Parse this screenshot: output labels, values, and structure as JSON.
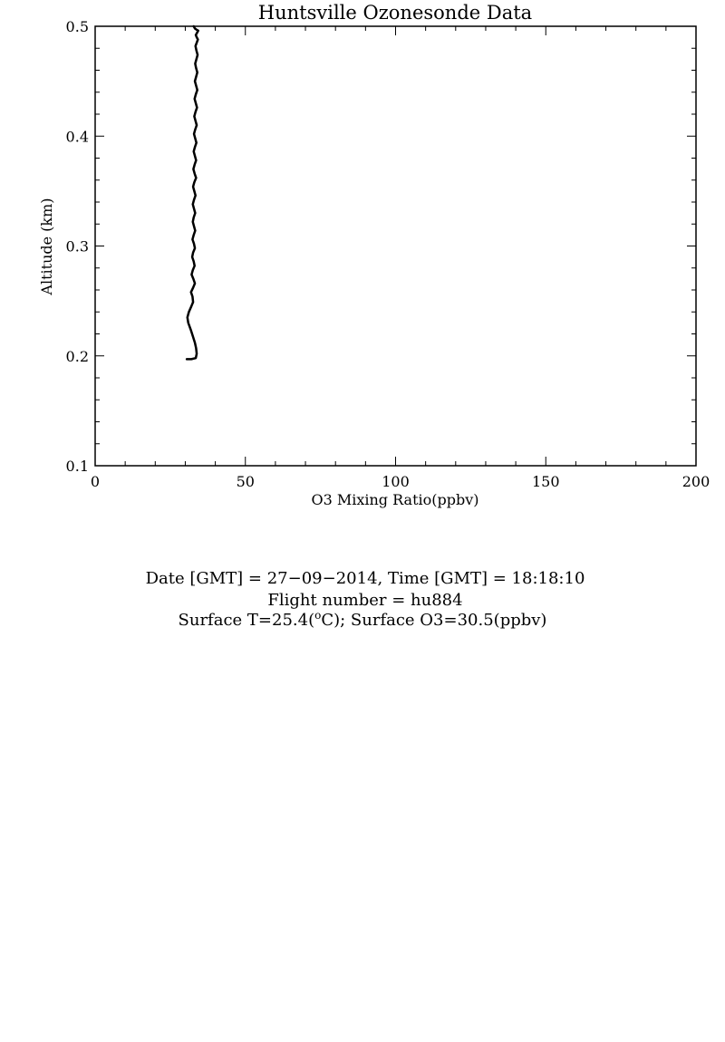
{
  "chart_data": {
    "type": "line",
    "title": "Huntsville Ozonesonde Data",
    "xlabel": "O3 Mixing Ratio(ppbv)",
    "ylabel": "Altitude (km)",
    "xlim": [
      0,
      200
    ],
    "ylim": [
      0.1,
      0.5
    ],
    "x_ticks": [
      0,
      50,
      100,
      150,
      200
    ],
    "x_tick_labels": [
      "0",
      "50",
      "100",
      "150",
      "200"
    ],
    "y_ticks": [
      0.1,
      0.2,
      0.3,
      0.4,
      0.5
    ],
    "y_tick_labels": [
      "0.1",
      "0.2",
      "0.3",
      "0.4",
      "0.5"
    ],
    "grid": false,
    "legend": "none",
    "line_color": "#000000",
    "series": [
      {
        "x": [
          30.5,
          32.0,
          33.5,
          33.8,
          33.6,
          33.2,
          32.5,
          31.8,
          31.0,
          30.7,
          31.2,
          32.0,
          32.6,
          32.4,
          31.9,
          32.6,
          33.2,
          32.7,
          32.1,
          32.5,
          33.1,
          32.8,
          32.3,
          32.6,
          33.2,
          32.9,
          32.4,
          32.8,
          33.3,
          32.9,
          32.5,
          32.8,
          33.3,
          32.9,
          32.5,
          32.9,
          33.4,
          33.0,
          32.6,
          33.0,
          33.6,
          33.1,
          32.7,
          33.1,
          33.6,
          33.2,
          32.8,
          33.2,
          33.7,
          33.3,
          32.9,
          33.3,
          33.8,
          33.4,
          33.0,
          33.4,
          33.9,
          33.5,
          33.1,
          33.5,
          34.0,
          33.6,
          33.2,
          33.6,
          34.0,
          33.6,
          33.3,
          33.7,
          34.1,
          33.7,
          33.4,
          33.8,
          34.2,
          33.8,
          33.5,
          33.9,
          34.3,
          33.7,
          33.2,
          32.8
        ],
        "y": [
          0.197,
          0.197,
          0.198,
          0.202,
          0.207,
          0.212,
          0.218,
          0.224,
          0.23,
          0.235,
          0.24,
          0.245,
          0.249,
          0.254,
          0.258,
          0.262,
          0.266,
          0.27,
          0.274,
          0.278,
          0.282,
          0.286,
          0.29,
          0.294,
          0.298,
          0.302,
          0.306,
          0.31,
          0.314,
          0.318,
          0.322,
          0.326,
          0.33,
          0.334,
          0.338,
          0.342,
          0.346,
          0.35,
          0.354,
          0.358,
          0.362,
          0.366,
          0.37,
          0.374,
          0.378,
          0.382,
          0.386,
          0.39,
          0.394,
          0.398,
          0.402,
          0.406,
          0.41,
          0.414,
          0.418,
          0.422,
          0.426,
          0.43,
          0.434,
          0.438,
          0.442,
          0.446,
          0.45,
          0.454,
          0.458,
          0.462,
          0.466,
          0.47,
          0.474,
          0.478,
          0.482,
          0.485,
          0.488,
          0.49,
          0.492,
          0.494,
          0.496,
          0.497,
          0.498,
          0.5
        ]
      }
    ]
  },
  "info": {
    "line1": "Date [GMT] = 27−09−2014,  Time [GMT] = 18:18:10",
    "line2": "Flight number = hu884",
    "line3_prefix": "Surface T=25.4(",
    "line3_sup": "o",
    "line3_suffix": "C); Surface O3=30.5(ppbv)"
  }
}
